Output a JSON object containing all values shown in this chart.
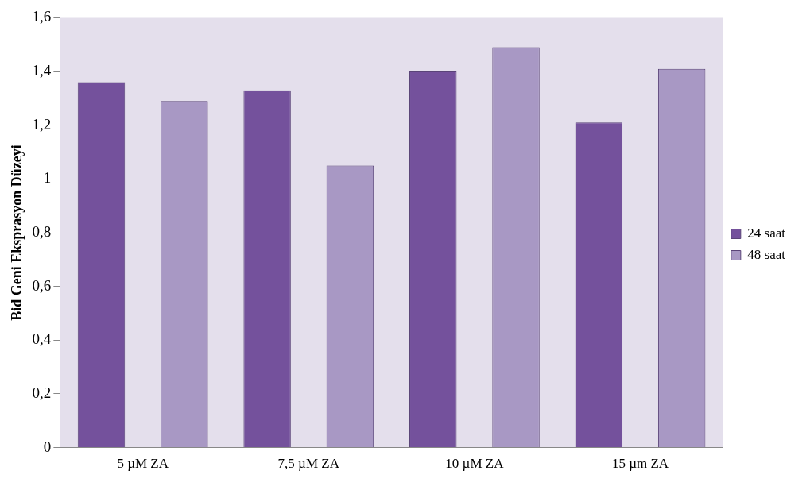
{
  "chart_data": {
    "type": "bar",
    "ylabel": "Bid Geni Eksprasyon Düzeyi",
    "categories": [
      "5 µM ZA",
      "7,5 µM ZA",
      "10 µM ZA",
      "15 µm ZA"
    ],
    "series": [
      {
        "name": "24 saat",
        "color": "#74519c",
        "values": [
          1.36,
          1.33,
          1.4,
          1.21
        ]
      },
      {
        "name": "48 saat",
        "color": "#a898c4",
        "values": [
          1.29,
          1.05,
          1.49,
          1.41
        ]
      }
    ],
    "ylim": [
      0,
      1.6
    ],
    "yticks": [
      {
        "value": 0,
        "label": "0"
      },
      {
        "value": 0.2,
        "label": "0,2"
      },
      {
        "value": 0.4,
        "label": "0,4"
      },
      {
        "value": 0.6,
        "label": "0,6"
      },
      {
        "value": 0.8,
        "label": "0,8"
      },
      {
        "value": 1,
        "label": "1"
      },
      {
        "value": 1.2,
        "label": "1,2"
      },
      {
        "value": 1.4,
        "label": "1,4"
      },
      {
        "value": 1.6,
        "label": "1,6"
      }
    ],
    "grid": false,
    "legend": "right"
  }
}
